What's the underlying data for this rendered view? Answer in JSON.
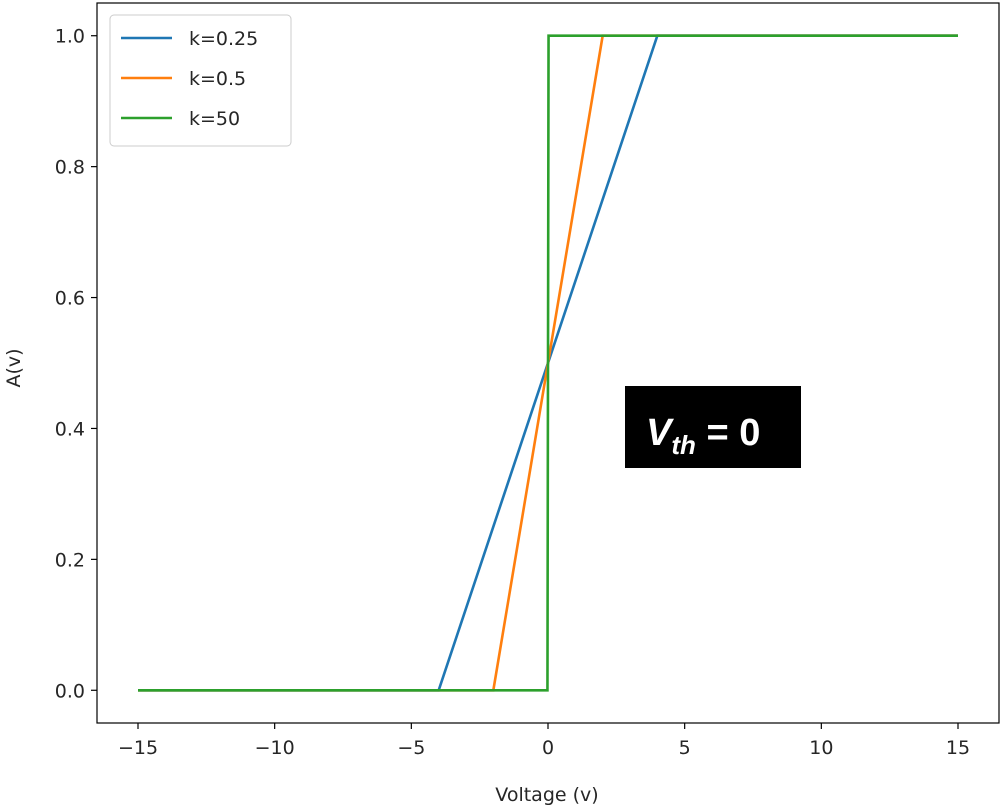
{
  "chart_data": {
    "type": "line",
    "title": "",
    "xlabel": "Voltage (v)",
    "ylabel": "A(v)",
    "xlim": [
      -16.5,
      16.5
    ],
    "ylim": [
      -0.05,
      1.05
    ],
    "grid": false,
    "legend_placement": "upper-left",
    "x_ticks": [
      -15,
      -10,
      -5,
      0,
      5,
      10,
      15
    ],
    "x_tick_labels": [
      "−15",
      "−10",
      "−5",
      "0",
      "5",
      "10",
      "15"
    ],
    "y_ticks": [
      0.0,
      0.2,
      0.4,
      0.6,
      0.8,
      1.0
    ],
    "y_tick_labels": [
      "0.0",
      "0.2",
      "0.4",
      "0.6",
      "0.8",
      "1.0"
    ],
    "series": [
      {
        "name": "k=0.25",
        "color": "#1f77b4",
        "x": [
          -15,
          -4,
          4,
          15
        ],
        "y": [
          0,
          0,
          1,
          1
        ]
      },
      {
        "name": "k=0.5",
        "color": "#ff7f0e",
        "x": [
          -15,
          -2,
          2,
          15
        ],
        "y": [
          0,
          0,
          1,
          1
        ]
      },
      {
        "name": "k=50",
        "color": "#2ca02c",
        "x": [
          -15,
          -0.02,
          0.02,
          15
        ],
        "y": [
          0,
          0,
          1,
          1
        ]
      }
    ],
    "annotation": {
      "text_main": "V",
      "text_sub": "th",
      "text_rest": " = 0",
      "x": 6,
      "y": 0.4,
      "background": "#000000",
      "color": "#ffffff"
    }
  }
}
